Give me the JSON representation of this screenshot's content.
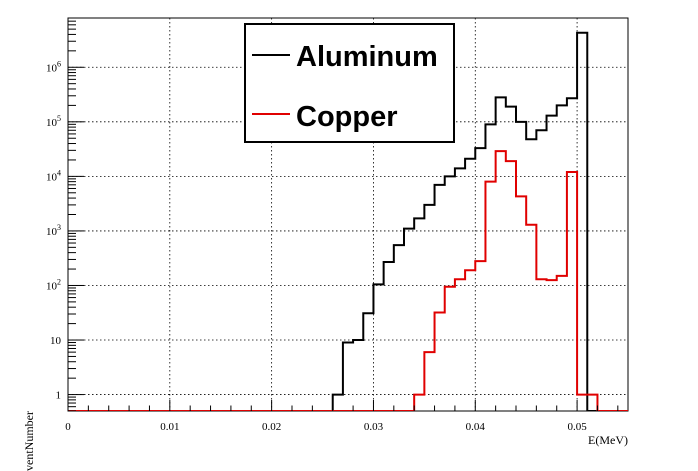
{
  "chart_data": {
    "type": "line",
    "title": "",
    "xlabel": "E(MeV)",
    "ylabel": "EventNumber",
    "xlim": [
      0,
      0.055
    ],
    "ylim": [
      0.5,
      8000000
    ],
    "yscale": "log",
    "grid": true,
    "legend": "top-center",
    "bin_width": 0.001,
    "x_ticks": [
      {
        "value": 0,
        "label": "0"
      },
      {
        "value": 0.01,
        "label": "0.01"
      },
      {
        "value": 0.02,
        "label": "0.02"
      },
      {
        "value": 0.03,
        "label": "0.03"
      },
      {
        "value": 0.04,
        "label": "0.04"
      },
      {
        "value": 0.05,
        "label": "0.05"
      }
    ],
    "y_ticks": [
      {
        "value": 1,
        "label": "1",
        "sup": ""
      },
      {
        "value": 10,
        "label": "10",
        "sup": ""
      },
      {
        "value": 100,
        "label": "10",
        "sup": "2"
      },
      {
        "value": 1000,
        "label": "10",
        "sup": "3"
      },
      {
        "value": 10000,
        "label": "10",
        "sup": "4"
      },
      {
        "value": 100000,
        "label": "10",
        "sup": "5"
      },
      {
        "value": 1000000,
        "label": "10",
        "sup": "6"
      }
    ],
    "series": [
      {
        "name": "Aluminum",
        "color": "#000000",
        "bins": [
          [
            0.026,
            1
          ],
          [
            0.027,
            9
          ],
          [
            0.028,
            10
          ],
          [
            0.029,
            31
          ],
          [
            0.03,
            105
          ],
          [
            0.031,
            270
          ],
          [
            0.032,
            550
          ],
          [
            0.033,
            1100
          ],
          [
            0.034,
            1700
          ],
          [
            0.035,
            3000
          ],
          [
            0.036,
            7000
          ],
          [
            0.037,
            10000
          ],
          [
            0.038,
            14000
          ],
          [
            0.039,
            21000
          ],
          [
            0.04,
            33000
          ],
          [
            0.041,
            90000
          ],
          [
            0.042,
            280000
          ],
          [
            0.043,
            190000
          ],
          [
            0.044,
            100000
          ],
          [
            0.045,
            48000
          ],
          [
            0.046,
            70000
          ],
          [
            0.047,
            130000
          ],
          [
            0.048,
            200000
          ],
          [
            0.049,
            270000
          ],
          [
            0.05,
            4300000
          ]
        ]
      },
      {
        "name": "Copper",
        "color": "#e00000",
        "bins": [
          [
            0.034,
            1
          ],
          [
            0.035,
            6
          ],
          [
            0.036,
            32
          ],
          [
            0.037,
            95
          ],
          [
            0.038,
            130
          ],
          [
            0.039,
            190
          ],
          [
            0.04,
            280
          ],
          [
            0.041,
            8000
          ],
          [
            0.042,
            29000
          ],
          [
            0.043,
            19000
          ],
          [
            0.044,
            4300
          ],
          [
            0.045,
            1300
          ],
          [
            0.046,
            130
          ],
          [
            0.047,
            125
          ],
          [
            0.048,
            150
          ],
          [
            0.049,
            12000
          ],
          [
            0.05,
            1
          ],
          [
            0.051,
            1
          ]
        ]
      }
    ]
  }
}
